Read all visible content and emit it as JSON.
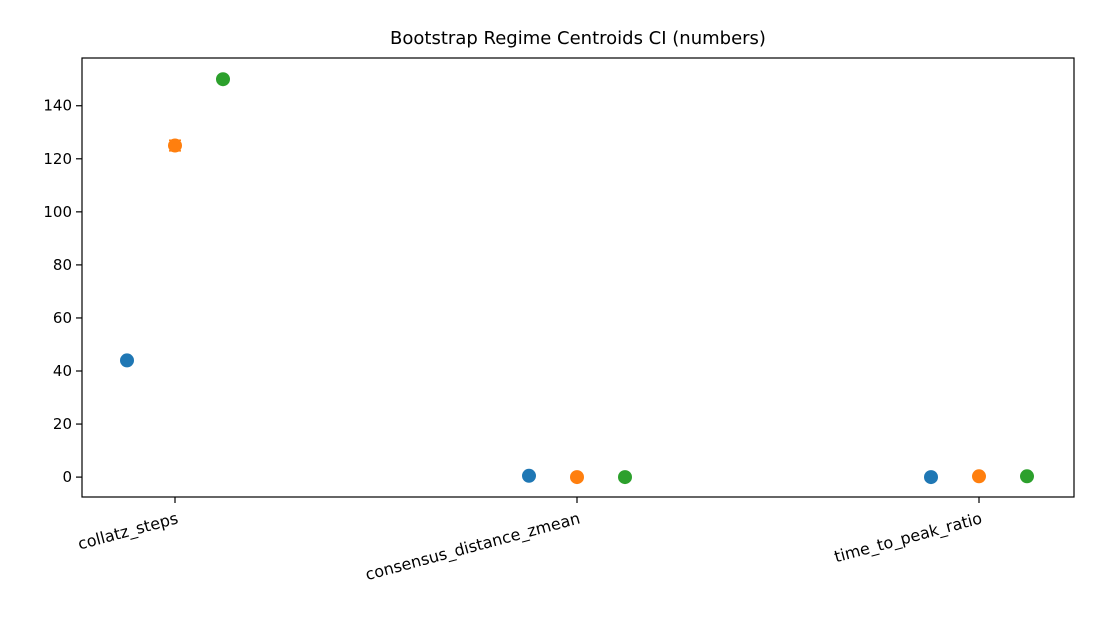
{
  "chart_data": {
    "type": "scatter",
    "title": "Bootstrap Regime Centroids CI (numbers)",
    "xlabel": "",
    "ylabel": "",
    "categories": [
      "collatz_steps",
      "consensus_distance_zmean",
      "time_to_peak_ratio"
    ],
    "ylim": [
      -7.5,
      158
    ],
    "yticks": [
      0,
      20,
      40,
      60,
      80,
      100,
      120,
      140
    ],
    "grid": false,
    "legend": "none",
    "series": [
      {
        "color": "#1f77b4",
        "values": [
          44,
          0.5,
          0.0
        ],
        "err": [
          0,
          0,
          0
        ]
      },
      {
        "color": "#ff7f0e",
        "values": [
          125,
          0.0,
          0.3
        ],
        "err": [
          2,
          0,
          0
        ]
      },
      {
        "color": "#2ca02c",
        "values": [
          150,
          0.0,
          0.3
        ],
        "err": [
          0,
          0,
          0
        ]
      }
    ]
  }
}
